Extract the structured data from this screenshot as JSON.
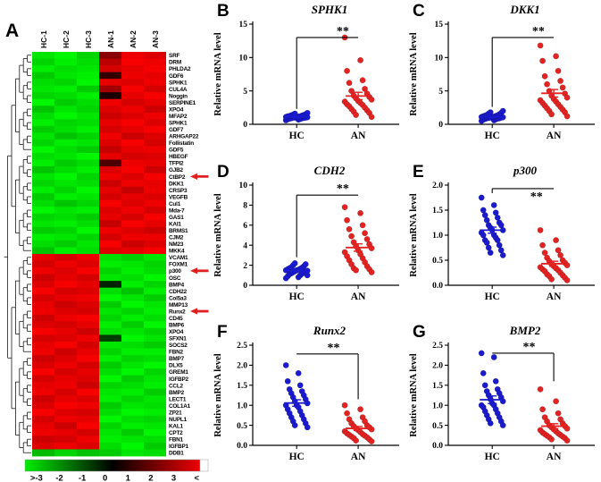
{
  "chart_data": [
    {
      "type": "heatmap",
      "panel_label": "A",
      "columns": [
        "HC-1",
        "HC-2",
        "HC-3",
        "AN-1",
        "AN-2",
        "AN-3"
      ],
      "rows": [
        "SRF",
        "DRM",
        "PHLDA2",
        "GDF6",
        "SPHK1",
        "CUL4A",
        "Noggin",
        "SERPINE1",
        "XPO4",
        "MFAP2",
        "SPHK1",
        "GDF7",
        "ARHGAP22",
        "Follistatin",
        "GDF5",
        "HBEGF",
        "TFPI2",
        "GJB2",
        "CtBP2",
        "DKK1",
        "CRSP3",
        "VEGFB",
        "Cul1",
        "Mda-7",
        "GAS1",
        "KAI1",
        "BRMS1",
        "CJM2",
        "NM23",
        "MKK4",
        "VCAM1",
        "FOXM1",
        "p300",
        "OSC",
        "BMP4",
        "CDH22",
        "Col5a3",
        "MMP13",
        "Runx2",
        "CD45",
        "BMP6",
        "XPO4",
        "SFXN1",
        "SOCS2",
        "FBN2",
        "BMP7",
        "DLX5",
        "GREM1",
        "IGFBP2",
        "CCL2",
        "BMP2",
        "LECT1",
        "COL1A1",
        "ZP21",
        "NUPL1",
        "KAL1",
        "CPT2",
        "FBN1",
        "IGFBP1",
        "DDB1"
      ],
      "values": [
        [
          -2.7,
          -2.9,
          -2.5,
          1.6,
          2.8,
          2.6
        ],
        [
          -2.5,
          -2.8,
          -2.6,
          2.2,
          2.9,
          2.8
        ],
        [
          -2.8,
          -2.6,
          -2.7,
          2.5,
          2.7,
          2.9
        ],
        [
          -2.4,
          -2.7,
          -2.8,
          0.6,
          2.8,
          2.7
        ],
        [
          -2.6,
          -2.5,
          -2.9,
          2.7,
          2.6,
          2.8
        ],
        [
          -2.7,
          -2.8,
          -2.4,
          1.9,
          2.9,
          2.5
        ],
        [
          -2.5,
          -2.6,
          -2.8,
          0.3,
          2.7,
          2.9
        ],
        [
          -2.9,
          -2.4,
          -2.6,
          2.8,
          2.5,
          2.7
        ],
        [
          -2.3,
          -2.7,
          -2.5,
          2.6,
          2.8,
          2.4
        ],
        [
          -2.6,
          -2.9,
          -2.7,
          2.4,
          2.6,
          2.8
        ],
        [
          -2.8,
          -2.5,
          -2.6,
          2.7,
          2.9,
          2.6
        ],
        [
          -2.4,
          -2.6,
          -2.8,
          2.5,
          2.7,
          2.9
        ],
        [
          -2.7,
          -2.3,
          -2.5,
          2.8,
          2.4,
          2.6
        ],
        [
          -2.5,
          -2.8,
          -2.7,
          2.6,
          2.9,
          2.5
        ],
        [
          -2.9,
          -2.6,
          -2.4,
          2.3,
          2.7,
          2.8
        ],
        [
          -2.6,
          -2.7,
          -2.9,
          2.7,
          2.5,
          2.6
        ],
        [
          -2.8,
          -2.4,
          -2.6,
          0.9,
          2.8,
          2.7
        ],
        [
          -2.3,
          -2.6,
          -2.8,
          2.6,
          2.9,
          2.4
        ],
        [
          -2.7,
          -2.9,
          -2.5,
          2.8,
          2.6,
          2.9
        ],
        [
          -2.5,
          -2.7,
          -2.6,
          2.4,
          2.8,
          2.7
        ],
        [
          -2.8,
          -2.5,
          -2.9,
          2.7,
          2.3,
          2.8
        ],
        [
          -2.4,
          -2.8,
          -2.7,
          2.5,
          2.7,
          2.6
        ],
        [
          -2.6,
          -2.3,
          -2.5,
          2.9,
          2.6,
          2.8
        ],
        [
          -2.9,
          -2.7,
          -2.8,
          2.6,
          2.8,
          2.5
        ],
        [
          -2.5,
          -2.6,
          -2.4,
          2.7,
          2.5,
          2.9
        ],
        [
          -2.7,
          -2.8,
          -2.6,
          2.3,
          2.9,
          2.7
        ],
        [
          -2.4,
          -2.5,
          -2.9,
          2.8,
          2.6,
          2.4
        ],
        [
          -2.8,
          -2.7,
          -2.5,
          2.5,
          2.8,
          2.8
        ],
        [
          -2.6,
          -2.4,
          -2.7,
          2.9,
          2.4,
          2.6
        ],
        [
          -2.3,
          -2.8,
          -2.6,
          2.6,
          2.7,
          2.9
        ],
        [
          2.7,
          2.5,
          2.8,
          -2.6,
          -2.4,
          -2.7
        ],
        [
          2.5,
          2.8,
          2.6,
          -2.8,
          -2.7,
          -2.5
        ],
        [
          2.8,
          2.6,
          2.9,
          -2.5,
          -2.8,
          -2.6
        ],
        [
          2.4,
          2.7,
          2.5,
          -2.7,
          -2.6,
          -2.9
        ],
        [
          2.6,
          2.9,
          2.7,
          -0.4,
          -2.8,
          -2.5
        ],
        [
          2.9,
          2.5,
          2.6,
          -2.6,
          -2.3,
          -2.8
        ],
        [
          2.5,
          2.7,
          2.8,
          -2.9,
          -2.7,
          -2.4
        ],
        [
          2.7,
          2.4,
          2.6,
          -2.4,
          -2.9,
          -2.7
        ],
        [
          2.8,
          2.6,
          2.5,
          -2.7,
          -2.5,
          -2.8
        ],
        [
          2.4,
          2.8,
          2.9,
          -2.5,
          -2.8,
          -2.6
        ],
        [
          2.6,
          2.5,
          2.7,
          -2.8,
          -2.4,
          -2.9
        ],
        [
          2.9,
          2.7,
          2.4,
          -2.6,
          -2.7,
          -2.5
        ],
        [
          2.5,
          2.6,
          2.8,
          -0.7,
          -2.9,
          -2.7
        ],
        [
          2.7,
          2.9,
          2.5,
          -2.7,
          -2.6,
          -2.4
        ],
        [
          2.8,
          2.4,
          2.7,
          -2.5,
          -2.8,
          -2.8
        ],
        [
          2.4,
          2.6,
          2.9,
          -2.8,
          -2.5,
          -2.6
        ],
        [
          2.6,
          2.8,
          2.5,
          -2.4,
          -2.7,
          -2.9
        ],
        [
          2.9,
          2.5,
          2.7,
          -2.6,
          -2.9,
          -2.5
        ],
        [
          2.5,
          2.7,
          2.6,
          -2.9,
          -2.4,
          -2.7
        ],
        [
          2.7,
          2.8,
          2.4,
          -2.5,
          -2.6,
          -2.8
        ],
        [
          2.8,
          2.5,
          2.9,
          -2.7,
          -2.8,
          -2.4
        ],
        [
          2.4,
          2.7,
          2.6,
          -2.8,
          -2.5,
          -2.7
        ],
        [
          2.6,
          2.9,
          2.8,
          -2.4,
          -2.7,
          -2.6
        ],
        [
          2.9,
          2.6,
          2.5,
          -2.6,
          -2.9,
          -2.8
        ],
        [
          2.5,
          2.8,
          2.7,
          -2.9,
          -2.6,
          -2.5
        ],
        [
          2.7,
          2.4,
          2.9,
          -2.5,
          -2.8,
          -2.7
        ],
        [
          2.8,
          2.7,
          2.5,
          -2.7,
          -2.4,
          -2.9
        ],
        [
          2.4,
          2.5,
          2.8,
          -2.8,
          -2.7,
          -2.6
        ],
        [
          2.6,
          2.8,
          2.6,
          -2.6,
          -2.9,
          -2.4
        ],
        [
          -2.2,
          -2.5,
          -2.3,
          -2.4,
          -2.7,
          -2.6
        ]
      ],
      "arrows": [
        "CtBP2",
        "p300",
        "Runx2"
      ],
      "scale": {
        "min": -3,
        "max": 3,
        "labels": [
          ">-3",
          "-2",
          "-1",
          "0",
          "1",
          "2",
          "3",
          "<"
        ]
      }
    },
    {
      "type": "scatter",
      "panel_label": "B",
      "title": "SPHK1",
      "ylabel": "Relative mRNA level",
      "categories": [
        "HC",
        "AN"
      ],
      "ylim": [
        0,
        15
      ],
      "yticks": [
        0,
        5,
        10,
        15
      ],
      "ytick_labels": [
        "0",
        "5",
        "10",
        "15"
      ],
      "sig": {
        "stars": "**",
        "top": 13.0,
        "left_drop": 2.3,
        "right_drop": null,
        "stars_frac": 0.75,
        "stars_side": "above"
      },
      "series": [
        {
          "name": "HC",
          "color": "#1a1ace",
          "values": [
            0.6,
            0.7,
            0.75,
            0.8,
            0.85,
            0.9,
            0.9,
            0.95,
            1.0,
            1.0,
            1.0,
            1.05,
            1.1,
            1.1,
            1.15,
            1.2,
            1.2,
            1.25,
            1.3,
            1.35,
            1.4,
            1.45,
            1.5,
            1.6,
            1.7
          ]
        },
        {
          "name": "AN",
          "color": "#e32222",
          "values": [
            13.0,
            9.6,
            8.0,
            6.6,
            6.2,
            5.3,
            5.0,
            4.6,
            4.3,
            4.1,
            3.9,
            3.7,
            3.5,
            3.4,
            3.2,
            3.0,
            2.9,
            2.7,
            2.5,
            2.3,
            2.1,
            1.9,
            1.7,
            1.4,
            1.1
          ]
        }
      ]
    },
    {
      "type": "scatter",
      "panel_label": "C",
      "title": "DKK1",
      "ylabel": "Relative mRNA level",
      "categories": [
        "HC",
        "AN"
      ],
      "ylim": [
        0,
        15
      ],
      "yticks": [
        0,
        5,
        10,
        15
      ],
      "ytick_labels": [
        "0",
        "5",
        "10",
        "15"
      ],
      "sig": {
        "stars": "**",
        "top": 13.0,
        "left_drop": 2.6,
        "right_drop": null,
        "stars_frac": 0.75,
        "stars_side": "above"
      },
      "series": [
        {
          "name": "HC",
          "color": "#1a1ace",
          "values": [
            0.5,
            0.6,
            0.7,
            0.75,
            0.8,
            0.85,
            0.9,
            0.9,
            0.95,
            1.0,
            1.0,
            1.05,
            1.1,
            1.1,
            1.15,
            1.2,
            1.25,
            1.3,
            1.35,
            1.4,
            1.5,
            1.6,
            1.7,
            1.8,
            2.0
          ]
        },
        {
          "name": "AN",
          "color": "#e32222",
          "values": [
            11.8,
            10.2,
            9.5,
            8.0,
            7.2,
            6.5,
            6.0,
            5.5,
            5.0,
            4.6,
            4.3,
            4.0,
            3.8,
            3.6,
            3.4,
            3.2,
            3.0,
            2.8,
            2.6,
            2.4,
            2.2,
            2.0,
            1.8,
            1.5,
            1.2
          ]
        }
      ]
    },
    {
      "type": "scatter",
      "panel_label": "D",
      "title": "CDH2",
      "ylabel": "Relative mRNA level",
      "categories": [
        "HC",
        "AN"
      ],
      "ylim": [
        0,
        10
      ],
      "yticks": [
        0,
        2,
        4,
        6,
        8,
        10
      ],
      "ytick_labels": [
        "0",
        "2",
        "4",
        "6",
        "8",
        "10"
      ],
      "sig": {
        "stars": "**",
        "top": 9.0,
        "left_drop": 2.8,
        "right_drop": null,
        "stars_frac": 0.75,
        "stars_side": "above"
      },
      "series": [
        {
          "name": "HC",
          "color": "#1a1ace",
          "values": [
            0.7,
            0.8,
            0.9,
            1.0,
            1.1,
            1.15,
            1.2,
            1.25,
            1.3,
            1.35,
            1.4,
            1.45,
            1.5,
            1.5,
            1.55,
            1.6,
            1.65,
            1.7,
            1.75,
            1.8,
            1.9,
            2.0,
            2.1,
            2.2,
            1.0
          ]
        },
        {
          "name": "AN",
          "color": "#e32222",
          "values": [
            7.8,
            7.2,
            6.5,
            6.0,
            5.6,
            5.2,
            4.9,
            4.6,
            4.3,
            4.1,
            3.9,
            3.7,
            3.5,
            3.3,
            3.1,
            2.9,
            2.7,
            2.5,
            2.3,
            2.1,
            1.9,
            1.7,
            1.6,
            1.5,
            1.3
          ]
        }
      ]
    },
    {
      "type": "scatter",
      "panel_label": "E",
      "title": "p300",
      "ylabel": "Relative mRNA level",
      "categories": [
        "HC",
        "AN"
      ],
      "ylim": [
        0,
        2.0
      ],
      "yticks": [
        0,
        0.5,
        1.0,
        1.5,
        2.0
      ],
      "ytick_labels": [
        "0.0",
        "0.5",
        "1.0",
        "1.5",
        "2.0"
      ],
      "sig": {
        "stars": "**",
        "top": 1.93,
        "left_drop": 1.84,
        "right_drop": null,
        "stars_frac": 0.72,
        "stars_side": "below"
      },
      "series": [
        {
          "name": "HC",
          "color": "#1a1ace",
          "values": [
            1.75,
            1.6,
            1.5,
            1.45,
            1.4,
            1.35,
            1.3,
            1.25,
            1.2,
            1.2,
            1.15,
            1.1,
            1.1,
            1.05,
            1.0,
            1.0,
            0.95,
            0.9,
            0.9,
            0.85,
            0.8,
            0.75,
            0.7,
            0.65,
            0.6
          ]
        },
        {
          "name": "AN",
          "color": "#e32222",
          "values": [
            1.1,
            0.9,
            0.8,
            0.7,
            0.65,
            0.6,
            0.55,
            0.5,
            0.48,
            0.45,
            0.42,
            0.4,
            0.38,
            0.36,
            0.34,
            0.32,
            0.3,
            0.28,
            0.25,
            0.22,
            0.2,
            0.18,
            0.15,
            0.12,
            0.1
          ]
        }
      ]
    },
    {
      "type": "scatter",
      "panel_label": "F",
      "title": "Runx2",
      "ylabel": "Relative mRNA level",
      "categories": [
        "HC",
        "AN"
      ],
      "ylim": [
        0,
        2.5
      ],
      "yticks": [
        0,
        0.5,
        1.0,
        1.5,
        2.0,
        2.5
      ],
      "ytick_labels": [
        "0.0",
        "0.5",
        "1.0",
        "1.5",
        "2.0",
        "2.5"
      ],
      "sig": {
        "stars": "**",
        "top": 2.28,
        "left_drop": null,
        "right_drop": 1.15,
        "stars_frac": 0.6,
        "stars_side": "above"
      },
      "series": [
        {
          "name": "HC",
          "color": "#1a1ace",
          "values": [
            2.0,
            1.8,
            1.6,
            1.5,
            1.4,
            1.35,
            1.3,
            1.25,
            1.2,
            1.15,
            1.1,
            1.05,
            1.0,
            1.0,
            0.95,
            0.9,
            0.85,
            0.8,
            0.75,
            0.7,
            0.65,
            0.6,
            0.55,
            0.5,
            0.45
          ]
        },
        {
          "name": "AN",
          "color": "#e32222",
          "values": [
            1.0,
            0.9,
            0.8,
            0.7,
            0.65,
            0.6,
            0.55,
            0.5,
            0.48,
            0.45,
            0.42,
            0.4,
            0.38,
            0.35,
            0.33,
            0.3,
            0.28,
            0.26,
            0.24,
            0.22,
            0.2,
            0.18,
            0.15,
            0.12,
            0.1
          ]
        }
      ]
    },
    {
      "type": "scatter",
      "panel_label": "G",
      "title": "BMP2",
      "ylabel": "Relative mRNA level",
      "categories": [
        "HC",
        "AN"
      ],
      "ylim": [
        0,
        2.5
      ],
      "yticks": [
        0,
        0.5,
        1.0,
        1.5,
        2.0,
        2.5
      ],
      "ytick_labels": [
        "0.0",
        "0.5",
        "1.0",
        "1.5",
        "2.0",
        "2.5"
      ],
      "sig": {
        "stars": "**",
        "top": 2.3,
        "left_drop": null,
        "right_drop": 1.6,
        "stars_frac": 0.6,
        "stars_side": "above"
      },
      "series": [
        {
          "name": "HC",
          "color": "#1a1ace",
          "values": [
            2.3,
            2.2,
            1.8,
            1.6,
            1.5,
            1.4,
            1.35,
            1.3,
            1.25,
            1.2,
            1.15,
            1.1,
            1.05,
            1.0,
            1.0,
            0.95,
            0.9,
            0.85,
            0.8,
            0.75,
            0.7,
            0.65,
            0.6,
            0.55,
            0.5
          ]
        },
        {
          "name": "AN",
          "color": "#e32222",
          "values": [
            1.4,
            1.1,
            0.9,
            0.8,
            0.7,
            0.65,
            0.6,
            0.55,
            0.5,
            0.48,
            0.45,
            0.42,
            0.4,
            0.38,
            0.35,
            0.32,
            0.3,
            0.28,
            0.26,
            0.24,
            0.22,
            0.2,
            0.18,
            0.15,
            0.12
          ]
        }
      ]
    }
  ]
}
